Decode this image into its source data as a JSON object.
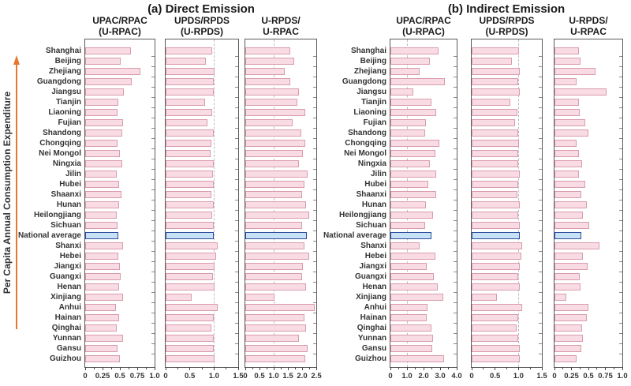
{
  "figure": {
    "y_axis_title": "Per Capita Annual Consumption Expenditure"
  },
  "chart_data": {
    "type": "bar",
    "orientation": "horizontal",
    "ylabel": "Per Capita Annual Consumption Expenditure",
    "grid": false,
    "legend": false,
    "categories": [
      "Shanghai",
      "Beijing",
      "Zhejiang",
      "Guangdong",
      "Jiangsu",
      "Tianjin",
      "Liaoning",
      "Fujian",
      "Shandong",
      "Chongqing",
      "Nei Mongol",
      "Ningxia",
      "Jilin",
      "Hubei",
      "Shaanxi",
      "Hunan",
      "Heilongjiang",
      "Sichuan",
      "National average",
      "Shanxi",
      "Hebei",
      "Jiangxi",
      "Guangxi",
      "Henan",
      "Xinjiang",
      "Anhui",
      "Hainan",
      "Qinghai",
      "Yunnan",
      "Gansu",
      "Guizhou"
    ],
    "highlight_category": "National average",
    "colors": {
      "bar_fill": "#F9DBE3",
      "bar_border": "#D99CAD",
      "highlight_fill": "#C7E2F6",
      "highlight_border": "#2C4C9C",
      "ref_line": "#BBBBBB",
      "frame": "#5A5A5A",
      "arrow": "#E8762C",
      "text": "#333333"
    },
    "panels": [
      {
        "title": "(a) Direct Emission",
        "charts": [
          {
            "name": "UPAC/RPAC (U-RPAC)",
            "header": [
              "UPAC/RPAC",
              "(U-RPAC)"
            ],
            "xlim": [
              0,
              1.0
            ],
            "xticks": [
              0,
              0.25,
              0.5,
              0.75,
              1.0
            ],
            "xtick_labels": [
              "0",
              "0.25",
              "0.5",
              "0.75",
              "1.0"
            ],
            "ref_line": 1.0,
            "values": [
              0.66,
              0.51,
              0.8,
              0.67,
              0.56,
              0.48,
              0.47,
              0.54,
              0.53,
              0.47,
              0.5,
              0.53,
              0.46,
              0.49,
              0.52,
              0.49,
              0.46,
              0.47,
              0.48,
              0.54,
              0.48,
              0.5,
              0.51,
              0.49,
              0.55,
              0.44,
              0.49,
              0.46,
              0.54,
              0.47,
              0.5
            ]
          },
          {
            "name": "UPDS/RPDS (U-RPDS)",
            "header": [
              "UPDS/RPDS",
              "(U-RPDS)"
            ],
            "xlim": [
              0,
              1.5
            ],
            "xticks": [
              0,
              0.5,
              1.0,
              1.5
            ],
            "xtick_labels": [
              "0",
              "0.5",
              "1.0",
              "1.5"
            ],
            "ref_line": 1.0,
            "values": [
              0.97,
              0.83,
              1.01,
              0.99,
              1.0,
              0.82,
              0.97,
              0.86,
              1.0,
              0.95,
              0.93,
              1.0,
              0.98,
              1.0,
              0.94,
              1.0,
              0.97,
              1.0,
              1.0,
              1.08,
              1.05,
              1.01,
              0.98,
              1.01,
              0.53,
              1.07,
              0.99,
              0.95,
              1.0,
              1.0,
              1.01
            ]
          },
          {
            "name": "U-RPDS/U-RPAC",
            "header": [
              "U-RPDS/",
              "U-RPAC"
            ],
            "xlim": [
              0,
              2.5
            ],
            "xticks": [
              0,
              0.5,
              1.0,
              1.5,
              2.0,
              2.5
            ],
            "xtick_labels": [
              "0",
              "0.5",
              "1.0",
              "1.5",
              "2.0",
              "2.5"
            ],
            "ref_line": 1.0,
            "values": [
              1.57,
              1.72,
              1.39,
              1.57,
              1.9,
              1.84,
              2.11,
              1.68,
              1.97,
              2.11,
              2.02,
              1.88,
              2.2,
              2.08,
              1.99,
              2.13,
              2.24,
              2.01,
              2.17,
              2.08,
              2.24,
              2.04,
              1.99,
              2.13,
              1.02,
              2.45,
              2.08,
              2.13,
              1.88,
              2.2,
              2.1
            ]
          }
        ]
      },
      {
        "title": "(b) Indirect Emission",
        "charts": [
          {
            "name": "UPAC/RPAC (U-RPAC)",
            "header": [
              "UPAC/RPAC",
              "(U-RPAC)"
            ],
            "xlim": [
              0,
              4.0
            ],
            "xticks": [
              0,
              1.0,
              2.0,
              3.0,
              4.0
            ],
            "xtick_labels": [
              "0",
              "1.0",
              "2.0",
              "3.0",
              "4.0"
            ],
            "ref_line": 1.0,
            "values": [
              2.9,
              2.36,
              1.74,
              3.29,
              1.4,
              2.48,
              2.78,
              2.15,
              2.08,
              2.94,
              2.71,
              2.39,
              2.74,
              2.28,
              2.74,
              2.15,
              2.59,
              2.08,
              2.48,
              1.78,
              2.71,
              2.2,
              2.64,
              2.85,
              3.21,
              2.25,
              2.2,
              2.48,
              2.56,
              2.51,
              3.26
            ]
          },
          {
            "name": "UPDS/RPDS (U-RPDS)",
            "header": [
              "UPDS/RPDS",
              "(U-RPDS)"
            ],
            "xlim": [
              0,
              1.5
            ],
            "xticks": [
              0,
              0.5,
              1.0,
              1.5
            ],
            "xtick_labels": [
              "0",
              "0.5",
              "1.0",
              "1.5"
            ],
            "ref_line": 1.0,
            "values": [
              1.01,
              0.86,
              1.03,
              1.0,
              1.02,
              0.83,
              0.98,
              0.92,
              1.0,
              1.01,
              1.0,
              1.0,
              1.02,
              1.0,
              0.98,
              1.02,
              1.0,
              1.02,
              1.02,
              1.08,
              1.07,
              1.02,
              1.0,
              1.02,
              0.54,
              1.08,
              1.0,
              0.96,
              1.0,
              1.02,
              1.02
            ]
          },
          {
            "name": "U-RPDS/U-RPAC",
            "header": [
              "U-RPDS/",
              "U-RPAC"
            ],
            "xlim": [
              0,
              1.0
            ],
            "xticks": [
              0,
              0.25,
              0.5,
              0.75,
              1.0
            ],
            "xtick_labels": [
              "0",
              "0.25",
              "0.5",
              "0.75",
              "1.0"
            ],
            "ref_line": 1.0,
            "values": [
              0.36,
              0.38,
              0.61,
              0.32,
              0.77,
              0.36,
              0.37,
              0.45,
              0.5,
              0.33,
              0.36,
              0.41,
              0.36,
              0.45,
              0.39,
              0.48,
              0.42,
              0.51,
              0.4,
              0.66,
              0.42,
              0.49,
              0.37,
              0.38,
              0.17,
              0.5,
              0.48,
              0.41,
              0.42,
              0.4,
              0.33
            ]
          }
        ]
      }
    ]
  }
}
